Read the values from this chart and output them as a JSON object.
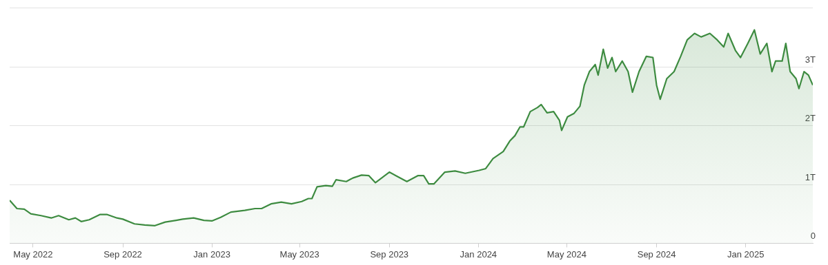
{
  "chart_data": {
    "type": "area",
    "x": [
      "2022-03-30",
      "2022-04-09",
      "2022-04-19",
      "2022-04-28",
      "2022-05-12",
      "2022-05-26",
      "2022-06-05",
      "2022-06-19",
      "2022-06-28",
      "2022-07-06",
      "2022-07-17",
      "2022-08-01",
      "2022-08-10",
      "2022-08-24",
      "2022-09-01",
      "2022-09-17",
      "2022-10-01",
      "2022-10-15",
      "2022-10-29",
      "2022-11-13",
      "2022-11-22",
      "2022-12-07",
      "2022-12-21",
      "2023-01-01",
      "2023-01-13",
      "2023-01-27",
      "2023-02-15",
      "2023-03-01",
      "2023-03-10",
      "2023-03-23",
      "2023-04-06",
      "2023-04-20",
      "2023-05-04",
      "2023-05-13",
      "2023-05-18",
      "2023-05-25",
      "2023-06-06",
      "2023-06-15",
      "2023-06-20",
      "2023-07-04",
      "2023-07-13",
      "2023-07-25",
      "2023-08-04",
      "2023-08-13",
      "2023-09-01",
      "2023-09-10",
      "2023-09-25",
      "2023-10-10",
      "2023-10-18",
      "2023-10-25",
      "2023-11-01",
      "2023-11-16",
      "2023-11-30",
      "2023-12-14",
      "2024-01-02",
      "2024-01-11",
      "2024-01-21",
      "2024-02-04",
      "2024-02-13",
      "2024-02-20",
      "2024-02-27",
      "2024-03-03",
      "2024-03-12",
      "2024-03-22",
      "2024-03-27",
      "2024-04-04",
      "2024-04-13",
      "2024-04-21",
      "2024-04-24",
      "2024-05-02",
      "2024-05-11",
      "2024-05-19",
      "2024-05-25",
      "2024-06-01",
      "2024-06-09",
      "2024-06-13",
      "2024-06-20",
      "2024-06-26",
      "2024-07-02",
      "2024-07-07",
      "2024-07-16",
      "2024-07-24",
      "2024-07-30",
      "2024-08-08",
      "2024-08-18",
      "2024-08-27",
      "2024-09-01",
      "2024-09-06",
      "2024-09-15",
      "2024-09-25",
      "2024-10-04",
      "2024-10-13",
      "2024-10-23",
      "2024-11-01",
      "2024-11-13",
      "2024-11-23",
      "2024-12-02",
      "2024-12-08",
      "2024-12-18",
      "2024-12-25",
      "2025-01-04",
      "2025-01-13",
      "2025-01-21",
      "2025-01-30",
      "2025-02-06",
      "2025-02-11",
      "2025-02-20",
      "2025-02-25",
      "2025-03-03",
      "2025-03-11",
      "2025-03-15",
      "2025-03-22",
      "2025-03-28",
      "2025-04-03"
    ],
    "values": [
      0.73,
      0.59,
      0.58,
      0.5,
      0.47,
      0.43,
      0.47,
      0.4,
      0.43,
      0.37,
      0.4,
      0.49,
      0.49,
      0.43,
      0.41,
      0.33,
      0.31,
      0.3,
      0.36,
      0.39,
      0.41,
      0.43,
      0.39,
      0.38,
      0.44,
      0.53,
      0.56,
      0.59,
      0.59,
      0.67,
      0.7,
      0.67,
      0.71,
      0.76,
      0.76,
      0.96,
      0.98,
      0.97,
      1.08,
      1.05,
      1.11,
      1.16,
      1.15,
      1.03,
      1.21,
      1.15,
      1.05,
      1.15,
      1.15,
      1.01,
      1.01,
      1.21,
      1.23,
      1.19,
      1.24,
      1.27,
      1.44,
      1.56,
      1.74,
      1.83,
      1.98,
      1.98,
      2.24,
      2.31,
      2.36,
      2.22,
      2.24,
      2.09,
      1.92,
      2.15,
      2.21,
      2.33,
      2.69,
      2.92,
      3.04,
      2.86,
      3.3,
      2.98,
      3.16,
      2.92,
      3.1,
      2.92,
      2.57,
      2.92,
      3.18,
      3.16,
      2.69,
      2.45,
      2.8,
      2.92,
      3.18,
      3.46,
      3.57,
      3.51,
      3.57,
      3.46,
      3.34,
      3.57,
      3.28,
      3.16,
      3.4,
      3.63,
      3.22,
      3.4,
      2.92,
      3.1,
      3.1,
      3.4,
      2.92,
      2.8,
      2.63,
      2.92,
      2.86,
      2.69
    ],
    "color": "#3d8b40",
    "xlim": [
      "2022-03-30",
      "2025-04-03"
    ],
    "xticks": [
      {
        "value": "2022-05-01",
        "label": "May 2022"
      },
      {
        "value": "2022-09-01",
        "label": "Sep 2022"
      },
      {
        "value": "2023-01-01",
        "label": "Jan 2023"
      },
      {
        "value": "2023-05-01",
        "label": "May 2023"
      },
      {
        "value": "2023-09-01",
        "label": "Sep 2023"
      },
      {
        "value": "2024-01-01",
        "label": "Jan 2024"
      },
      {
        "value": "2024-05-01",
        "label": "May 2024"
      },
      {
        "value": "2024-09-01",
        "label": "Sep 2024"
      },
      {
        "value": "2025-01-01",
        "label": "Jan 2025"
      }
    ],
    "ylim": [
      0,
      4
    ],
    "yticks": [
      {
        "value": 0,
        "label": "0"
      },
      {
        "value": 1,
        "label": "1T"
      },
      {
        "value": 2,
        "label": "2T"
      },
      {
        "value": 3,
        "label": "3T"
      },
      {
        "value": 4,
        "label": null
      }
    ],
    "grid": "y",
    "marker": "none"
  }
}
